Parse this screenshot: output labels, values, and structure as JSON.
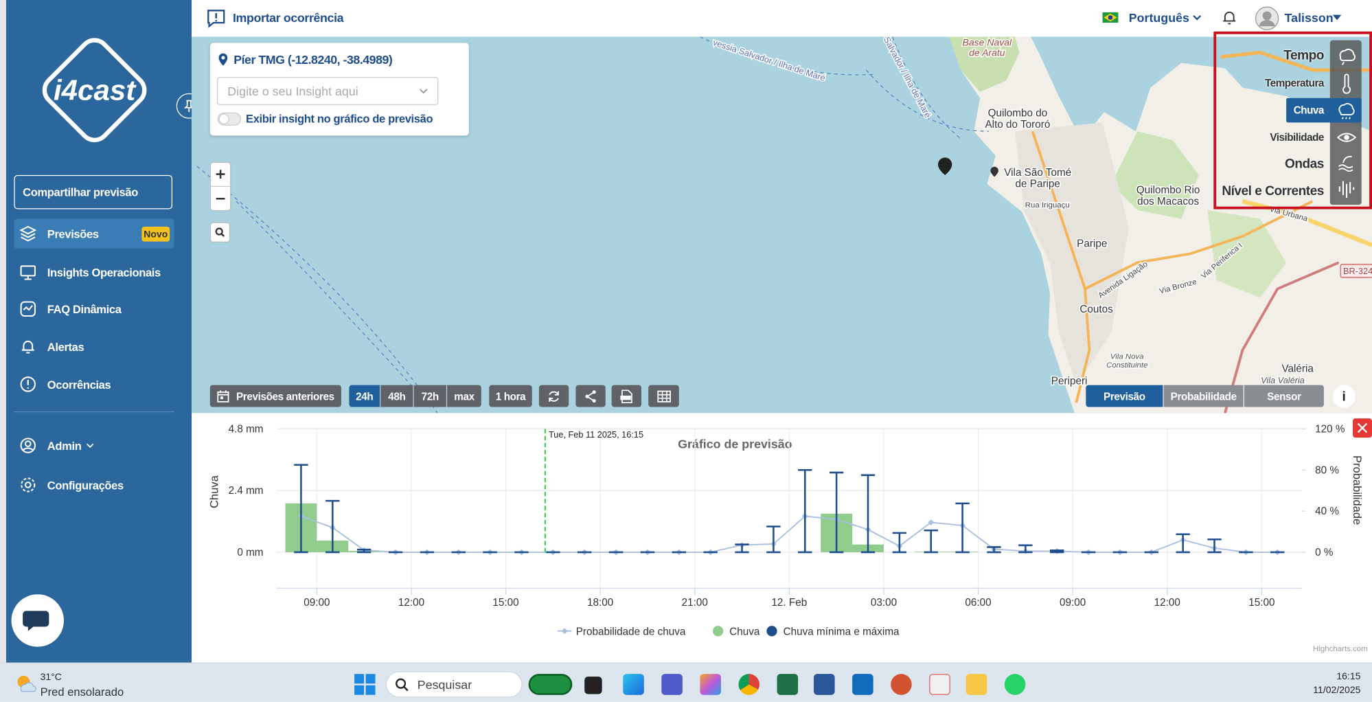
{
  "topbar": {
    "import_button": "Importar ocorrência",
    "language": "Português",
    "user": "Talisson"
  },
  "sidebar": {
    "logo": "i4cast",
    "share_button": "Compartilhar previsão",
    "menu": [
      {
        "label": "Previsões",
        "badge": "Novo"
      },
      {
        "label": "Insights Operacionais"
      },
      {
        "label": "FAQ Dinâmica"
      },
      {
        "label": "Alertas"
      },
      {
        "label": "Ocorrências"
      }
    ],
    "admin": "Admin",
    "settings": "Configurações"
  },
  "map": {
    "location": "Píer TMG (-12.8240, -38.4989)",
    "insight_placeholder": "Digite o seu Insight aqui",
    "insight_toggle": "Exibir insight no gráfico de previsão",
    "labels": [
      [
        "Base Naval",
        "de Aratu"
      ],
      [
        "Quilombo do",
        "Alto do Tororó"
      ],
      [
        "Vila São Tomé",
        "de Paripe"
      ],
      [
        "Quilombo Rio",
        "dos Macacos"
      ],
      [
        "Paripe"
      ],
      [
        "Coutos"
      ],
      [
        "Periperi"
      ],
      [
        "Valéria"
      ],
      [
        "Vila Valéria"
      ],
      [
        "Vila Nova",
        "Constituinte"
      ],
      [
        "Rua Iriguaçu"
      ],
      [
        "Avenida Ligação"
      ],
      [
        "Via Bronze"
      ],
      [
        "Via Urbana"
      ],
      [
        "BR-324"
      ],
      [
        "vessia Salvador / Ilha de Maré"
      ],
      [
        "Salvador / Ilha de Maré"
      ],
      [
        "Via Periferica I"
      ]
    ],
    "toolbar": {
      "history": "Previsões anteriores",
      "ranges": [
        "24h",
        "48h",
        "72h",
        "max"
      ],
      "step": "1 hora"
    },
    "views": [
      "Previsão",
      "Probabilidade",
      "Sensor"
    ],
    "layers": [
      "Tempo",
      "Temperatura",
      "Chuva",
      "Visibilidade",
      "Ondas",
      "Nível e Correntes"
    ]
  },
  "chart_data": {
    "type": "combo",
    "title": "Gráfico de previsão",
    "y_label": "Chuva",
    "y2_label": "Probabilidade",
    "credit": "Highcharts.com",
    "plot_line": {
      "value": 16.25,
      "label": "Tue, Feb 11 2025, 16:15"
    },
    "x": [
      8.5,
      9.5,
      10.5,
      11.5,
      12.5,
      13.5,
      14.5,
      15.5,
      16.5,
      17.5,
      18.5,
      19.5,
      20.5,
      21.5,
      22.5,
      23.5,
      24.5,
      25.5,
      26.5,
      27.5,
      28.5,
      29.5,
      30.5,
      31.5,
      32.5,
      33.5,
      34.5,
      35.5,
      36.5,
      37.5,
      38.5,
      39.5
    ],
    "xlim": [
      7.72,
      40.28
    ],
    "xticks": [
      {
        "value": 9,
        "label": "09:00"
      },
      {
        "value": 12,
        "label": "12:00"
      },
      {
        "value": 15,
        "label": "15:00"
      },
      {
        "value": 18,
        "label": "18:00"
      },
      {
        "value": 21,
        "label": "21:00"
      },
      {
        "value": 24,
        "label": "12. Feb"
      },
      {
        "value": 27,
        "label": "03:00"
      },
      {
        "value": 30,
        "label": "06:00"
      },
      {
        "value": 33,
        "label": "09:00"
      },
      {
        "value": 36,
        "label": "12:00"
      },
      {
        "value": 39,
        "label": "15:00"
      }
    ],
    "ylim": [
      -1.4,
      4.8
    ],
    "yticks": [
      {
        "value": 0,
        "label": "0 mm"
      },
      {
        "value": 2.4,
        "label": "2.4 mm"
      },
      {
        "value": 4.8,
        "label": "4.8 mm"
      }
    ],
    "y2lim": [
      -35,
      120
    ],
    "y2ticks": [
      {
        "value": 0,
        "label": "0 %"
      },
      {
        "value": 40,
        "label": "40 %"
      },
      {
        "value": 80,
        "label": "80 %"
      },
      {
        "value": 120,
        "label": "120 %"
      }
    ],
    "grid": true,
    "legend": "bottom",
    "series": [
      {
        "name": "Probabilidade de chuva",
        "type": "line",
        "axis": "y2",
        "color": "#a9c0de",
        "values": [
          35,
          24,
          2,
          0,
          0,
          0,
          0,
          0,
          0,
          0,
          0,
          0,
          0,
          0,
          7,
          8,
          35,
          32,
          22,
          6,
          29,
          26,
          3,
          1,
          1,
          0,
          0,
          0,
          12,
          4,
          0,
          0
        ]
      },
      {
        "name": "Chuva",
        "type": "column",
        "color": "#90cc8c",
        "values": [
          1.9,
          0.45,
          0.05,
          0,
          0,
          0,
          0,
          0,
          0,
          0,
          0,
          0,
          0,
          0,
          0,
          0,
          0,
          1.5,
          0.3,
          0,
          0.02,
          0.02,
          0,
          0,
          0,
          0,
          0,
          0,
          0,
          0,
          0,
          0
        ]
      },
      {
        "name": "Chuva mínima e máxima",
        "type": "errorbar",
        "color": "#1f4e8c",
        "low": [
          0,
          0,
          0,
          0,
          0,
          0,
          0,
          0,
          0,
          0,
          0,
          0,
          0,
          0,
          0,
          0,
          0,
          0,
          0,
          0,
          0,
          0,
          0,
          0,
          0,
          0,
          0,
          0,
          0,
          0,
          0,
          0
        ],
        "high": [
          3.4,
          2.0,
          0.1,
          0,
          0,
          0,
          0,
          0,
          0,
          0,
          0,
          0,
          0,
          0,
          0.3,
          1.0,
          3.2,
          3.1,
          3.0,
          0.75,
          0.85,
          1.9,
          0.2,
          0.27,
          0.07,
          0,
          0,
          0,
          0.7,
          0.5,
          0,
          0
        ]
      }
    ]
  },
  "taskbar": {
    "temperature": "31°C",
    "weather": "Pred ensolarado",
    "search": "Pesquisar",
    "time": "16:15",
    "date": "11/02/2025"
  }
}
